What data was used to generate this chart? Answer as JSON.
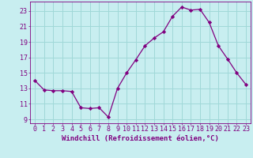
{
  "x": [
    0,
    1,
    2,
    3,
    4,
    5,
    6,
    7,
    8,
    9,
    10,
    11,
    12,
    13,
    14,
    15,
    16,
    17,
    18,
    19,
    20,
    21,
    22,
    23
  ],
  "y": [
    14.0,
    12.8,
    12.7,
    12.7,
    12.6,
    10.5,
    10.4,
    10.5,
    9.3,
    13.0,
    15.0,
    16.7,
    18.5,
    19.5,
    20.3,
    22.3,
    23.5,
    23.1,
    23.2,
    21.5,
    18.5,
    16.8,
    15.0,
    13.5
  ],
  "line_color": "#800080",
  "marker": "D",
  "marker_size": 2.2,
  "bg_color": "#c8eef0",
  "grid_color": "#a0d8d8",
  "xlabel": "Windchill (Refroidissement éolien,°C)",
  "xlabel_color": "#800080",
  "tick_color": "#800080",
  "ylim": [
    8.5,
    24.2
  ],
  "yticks": [
    9,
    11,
    13,
    15,
    17,
    19,
    21,
    23
  ],
  "xlim": [
    -0.5,
    23.5
  ],
  "xticks": [
    0,
    1,
    2,
    3,
    4,
    5,
    6,
    7,
    8,
    9,
    10,
    11,
    12,
    13,
    14,
    15,
    16,
    17,
    18,
    19,
    20,
    21,
    22,
    23
  ],
  "tick_fontsize": 6.0,
  "label_fontsize": 6.5,
  "linewidth": 0.9
}
